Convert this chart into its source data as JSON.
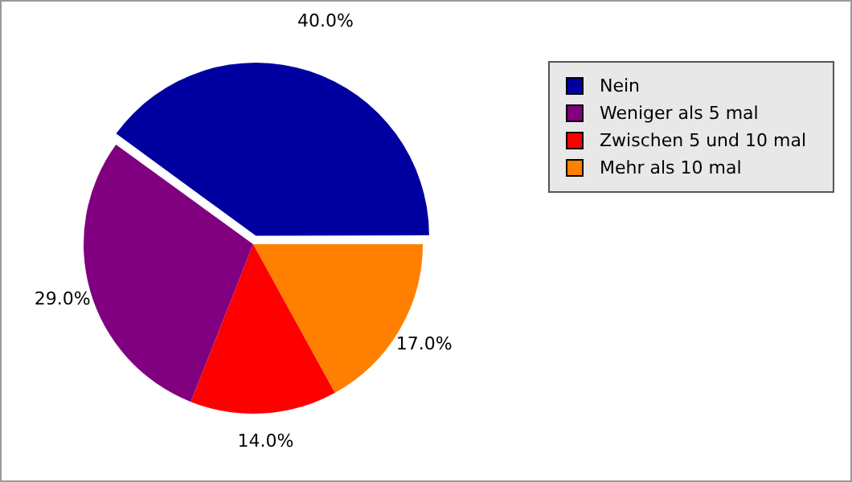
{
  "chart_data": {
    "type": "pie",
    "categories": [
      "Nein",
      "Weniger als 5 mal",
      "Zwischen 5 und 10 mal",
      "Mehr als 10 mal"
    ],
    "values": [
      40,
      29,
      14,
      17
    ],
    "colors": [
      "#0000a0",
      "#800080",
      "#ff0000",
      "#ff8000"
    ],
    "value_labels": [
      "40.0%",
      "29.0%",
      "14.0%",
      "17.0%"
    ],
    "legend": "right"
  }
}
